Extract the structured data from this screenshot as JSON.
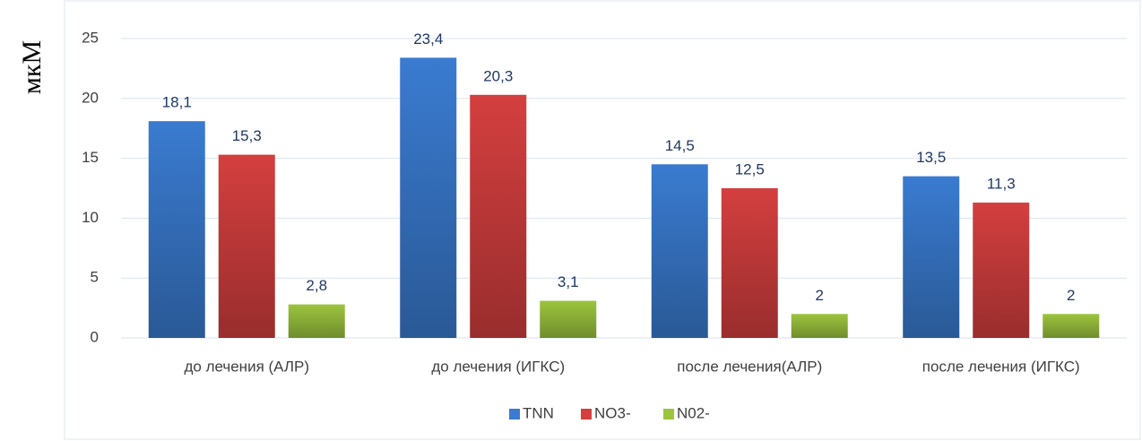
{
  "chart_data": {
    "type": "bar",
    "y_label": "мкМ",
    "categories": [
      "до лечения (АЛР)",
      "до лечения (ИГКС)",
      "после лечения(АЛР)",
      "после лечения (ИГКС)"
    ],
    "series": [
      {
        "name": "TNN",
        "color": "#3a7bd0",
        "values": [
          18.1,
          23.4,
          14.5,
          13.5
        ],
        "value_labels": [
          "18,1",
          "23,4",
          "14,5",
          "13,5"
        ]
      },
      {
        "name": "NO3-",
        "color": "#d43f3f",
        "values": [
          15.3,
          20.3,
          12.5,
          11.3
        ],
        "value_labels": [
          "15,3",
          "20,3",
          "12,5",
          "11,3"
        ]
      },
      {
        "name": "N02-",
        "color": "#9cc43e",
        "values": [
          2.8,
          3.1,
          2,
          2
        ],
        "value_labels": [
          "2,8",
          "3,1",
          "2",
          "2"
        ]
      }
    ],
    "ylim": [
      0,
      25
    ],
    "yticks": [
      0,
      5,
      10,
      15,
      20,
      25
    ],
    "grid": true,
    "legend": "bottom"
  }
}
